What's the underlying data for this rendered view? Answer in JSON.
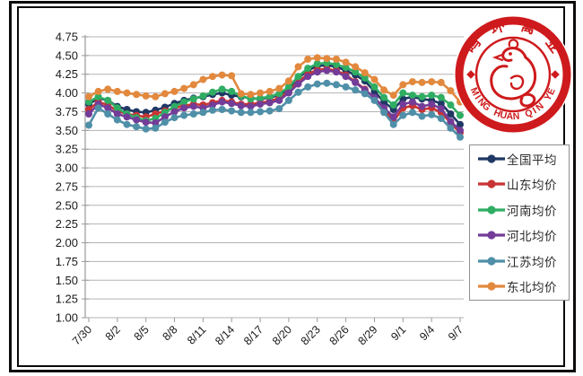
{
  "logo": {
    "top_characters": [
      "鸣",
      "环",
      "禽",
      "业"
    ],
    "bottom_text": "MING HUAN QIN YE",
    "color": "#CE1A1C"
  },
  "theme": {
    "frame_color": "#0a0a0a",
    "gridline_color": "#b3b3b3",
    "axis_color": "#9a9a9a",
    "tick_text_color": "#1a1a1a",
    "legend_border_color": "#8f8f8f",
    "background": "#ffffff"
  },
  "chart_data": {
    "type": "line",
    "title": "",
    "xlabel": "",
    "ylabel": "",
    "ylim": [
      1.0,
      4.75
    ],
    "grid": true,
    "legend_position": "right",
    "y_ticks": [
      "4.75",
      "4.50",
      "4.25",
      "4.00",
      "3.75",
      "3.50",
      "3.25",
      "3.00",
      "2.75",
      "2.50",
      "2.25",
      "2.00",
      "1.75",
      "1.50",
      "1.25",
      "1.00"
    ],
    "x_tick_labels": [
      "7/30",
      "8/2",
      "8/5",
      "8/8",
      "8/11",
      "8/14",
      "8/17",
      "8/20",
      "8/23",
      "8/26",
      "8/29",
      "9/1",
      "9/4",
      "9/7"
    ],
    "x": [
      "7/30",
      "7/31",
      "8/1",
      "8/2",
      "8/3",
      "8/4",
      "8/5",
      "8/6",
      "8/7",
      "8/8",
      "8/9",
      "8/10",
      "8/11",
      "8/12",
      "8/13",
      "8/14",
      "8/15",
      "8/16",
      "8/17",
      "8/18",
      "8/19",
      "8/20",
      "8/21",
      "8/22",
      "8/23",
      "8/24",
      "8/25",
      "8/26",
      "8/27",
      "8/28",
      "8/29",
      "8/30",
      "8/31",
      "9/1",
      "9/2",
      "9/3",
      "9/4",
      "9/5",
      "9/6",
      "9/7"
    ],
    "series": [
      {
        "key": "national-average",
        "name": "全国平均",
        "color": "#1F3864",
        "values": [
          3.85,
          3.93,
          3.9,
          3.82,
          3.78,
          3.75,
          3.74,
          3.77,
          3.81,
          3.86,
          3.9,
          3.93,
          3.95,
          3.98,
          4.0,
          3.97,
          3.95,
          3.93,
          3.92,
          3.94,
          3.97,
          4.06,
          4.2,
          4.3,
          4.36,
          4.37,
          4.35,
          4.3,
          4.24,
          4.16,
          4.02,
          3.88,
          3.78,
          3.92,
          3.95,
          3.92,
          3.9,
          3.86,
          3.72,
          3.58
        ]
      },
      {
        "key": "shandong-average",
        "name": "山东均价",
        "color": "#C93434",
        "values": [
          3.78,
          3.88,
          3.84,
          3.76,
          3.72,
          3.7,
          3.68,
          3.72,
          3.76,
          3.8,
          3.83,
          3.85,
          3.84,
          3.87,
          3.9,
          3.88,
          3.85,
          3.85,
          3.87,
          3.89,
          3.93,
          4.02,
          4.15,
          4.25,
          4.31,
          4.32,
          4.3,
          4.24,
          4.15,
          4.05,
          3.93,
          3.78,
          3.62,
          3.8,
          3.83,
          3.78,
          3.8,
          3.74,
          3.6,
          3.47
        ]
      },
      {
        "key": "henan-average",
        "name": "河南均价",
        "color": "#2FAD63",
        "values": [
          3.88,
          3.95,
          3.9,
          3.8,
          3.72,
          3.67,
          3.63,
          3.66,
          3.74,
          3.82,
          3.88,
          3.92,
          3.96,
          4.01,
          4.05,
          4.02,
          3.96,
          3.92,
          3.93,
          3.95,
          3.99,
          4.08,
          4.22,
          4.33,
          4.39,
          4.4,
          4.38,
          4.34,
          4.28,
          4.2,
          4.08,
          3.94,
          3.84,
          4.0,
          3.97,
          3.95,
          3.97,
          3.94,
          3.84,
          3.7
        ]
      },
      {
        "key": "hebei-average",
        "name": "河北均价",
        "color": "#733C98",
        "values": [
          3.72,
          3.85,
          3.8,
          3.72,
          3.68,
          3.64,
          3.61,
          3.6,
          3.68,
          3.75,
          3.8,
          3.82,
          3.8,
          3.84,
          3.88,
          3.86,
          3.83,
          3.82,
          3.85,
          3.87,
          3.9,
          4.0,
          4.12,
          4.22,
          4.28,
          4.3,
          4.28,
          4.22,
          4.14,
          4.04,
          3.94,
          3.8,
          3.68,
          3.85,
          3.88,
          3.82,
          3.85,
          3.79,
          3.62,
          3.5
        ]
      },
      {
        "key": "jiangsu-average",
        "name": "江苏均价",
        "color": "#4F8FA8",
        "values": [
          3.57,
          3.8,
          3.72,
          3.64,
          3.58,
          3.55,
          3.52,
          3.53,
          3.61,
          3.67,
          3.7,
          3.72,
          3.74,
          3.77,
          3.78,
          3.76,
          3.74,
          3.74,
          3.75,
          3.76,
          3.79,
          3.9,
          4.01,
          4.08,
          4.12,
          4.13,
          4.11,
          4.08,
          4.04,
          3.99,
          3.9,
          3.74,
          3.58,
          3.7,
          3.74,
          3.69,
          3.71,
          3.66,
          3.53,
          3.41
        ]
      },
      {
        "key": "northeast-average",
        "name": "东北均价",
        "color": "#E2893E",
        "values": [
          3.95,
          4.02,
          4.05,
          4.02,
          4.0,
          3.98,
          3.96,
          3.95,
          3.99,
          4.02,
          4.06,
          4.11,
          4.18,
          4.22,
          4.24,
          4.23,
          3.99,
          3.98,
          4.0,
          4.02,
          4.06,
          4.16,
          4.35,
          4.45,
          4.47,
          4.46,
          4.45,
          4.41,
          4.35,
          4.27,
          4.18,
          4.04,
          3.97,
          4.11,
          4.15,
          4.14,
          4.15,
          4.14,
          4.03,
          3.88
        ]
      }
    ]
  }
}
